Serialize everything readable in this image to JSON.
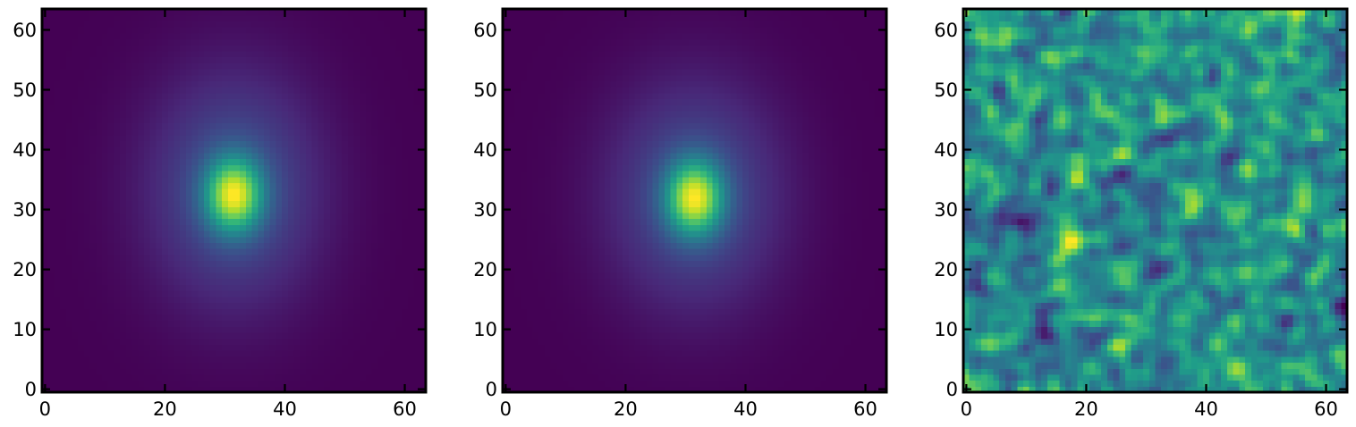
{
  "figure": {
    "background": "#ffffff",
    "colormap": "viridis",
    "colormap_stops": [
      "#440154",
      "#482878",
      "#3e4989",
      "#31688e",
      "#26828e",
      "#1f9e89",
      "#35b779",
      "#6ece58",
      "#b5de2b",
      "#fde725"
    ]
  },
  "chart_data": [
    {
      "type": "heatmap",
      "title": "",
      "xlabel": "",
      "ylabel": "",
      "xlim": [
        -0.5,
        63.5
      ],
      "ylim": [
        -0.5,
        63.5
      ],
      "grid_size": 64,
      "origin": "lower",
      "xticks": [
        0,
        20,
        40,
        60
      ],
      "yticks": [
        0,
        10,
        20,
        30,
        40,
        50,
        60
      ],
      "field": {
        "kind": "elliptical-gaussian",
        "background": 0.07,
        "components": [
          {
            "cx": 31.5,
            "cy": 32.5,
            "amp": 0.68,
            "sx": 3.2,
            "sy": 4.2
          },
          {
            "cx": 31.5,
            "cy": 33.5,
            "amp": 0.25,
            "sx": 10,
            "sy": 13.5
          }
        ]
      }
    },
    {
      "type": "heatmap",
      "title": "",
      "xlabel": "",
      "ylabel": "",
      "xlim": [
        -0.5,
        63.5
      ],
      "ylim": [
        -0.5,
        63.5
      ],
      "grid_size": 64,
      "origin": "lower",
      "xticks": [
        0,
        20,
        40,
        60
      ],
      "yticks": [
        0,
        10,
        20,
        30,
        40,
        50,
        60
      ],
      "field": {
        "kind": "elliptical-gaussian",
        "background": 0.05,
        "components": [
          {
            "cx": 31.5,
            "cy": 32.0,
            "amp": 0.7,
            "sx": 3.2,
            "sy": 4.2
          },
          {
            "cx": 31.5,
            "cy": 32.5,
            "amp": 0.25,
            "sx": 10,
            "sy": 13
          }
        ]
      }
    },
    {
      "type": "heatmap",
      "title": "",
      "xlabel": "",
      "ylabel": "",
      "xlim": [
        -0.5,
        63.5
      ],
      "ylim": [
        -0.5,
        63.5
      ],
      "grid_size": 64,
      "origin": "lower",
      "xticks": [
        0,
        20,
        40,
        60
      ],
      "yticks": [
        0,
        10,
        20,
        30,
        40,
        50,
        60
      ],
      "field": {
        "kind": "residual-noise",
        "seed": 7,
        "hotspots": [
          {
            "cx": 43,
            "cy": 5,
            "amp": 0.55,
            "s": 1.8
          },
          {
            "cx": 22,
            "cy": 10.5,
            "amp": 0.45,
            "s": 1.6
          },
          {
            "cx": 17.5,
            "cy": 35,
            "amp": 0.45,
            "s": 1.6
          },
          {
            "cx": 19,
            "cy": 25,
            "amp": 0.35,
            "s": 1.6
          },
          {
            "cx": 38.5,
            "cy": 31.5,
            "amp": 0.35,
            "s": 1.4
          },
          {
            "cx": 28.5,
            "cy": 62,
            "amp": 0.35,
            "s": 1.6
          },
          {
            "cx": 54.5,
            "cy": 60,
            "amp": 0.3,
            "s": 1.5
          },
          {
            "cx": 31,
            "cy": 15,
            "amp": 0.3,
            "s": 1.6
          }
        ],
        "coldspots": [
          {
            "cx": 13.5,
            "cy": 7,
            "amp": 0.4,
            "s": 1.8
          },
          {
            "cx": 7.5,
            "cy": 28,
            "amp": 0.4,
            "s": 1.8
          },
          {
            "cx": 61.5,
            "cy": 31,
            "amp": 0.45,
            "s": 2
          },
          {
            "cx": 19.5,
            "cy": 58.5,
            "amp": 0.35,
            "s": 1.5
          },
          {
            "cx": 0.5,
            "cy": 42,
            "amp": 0.35,
            "s": 1.5
          }
        ]
      }
    }
  ]
}
